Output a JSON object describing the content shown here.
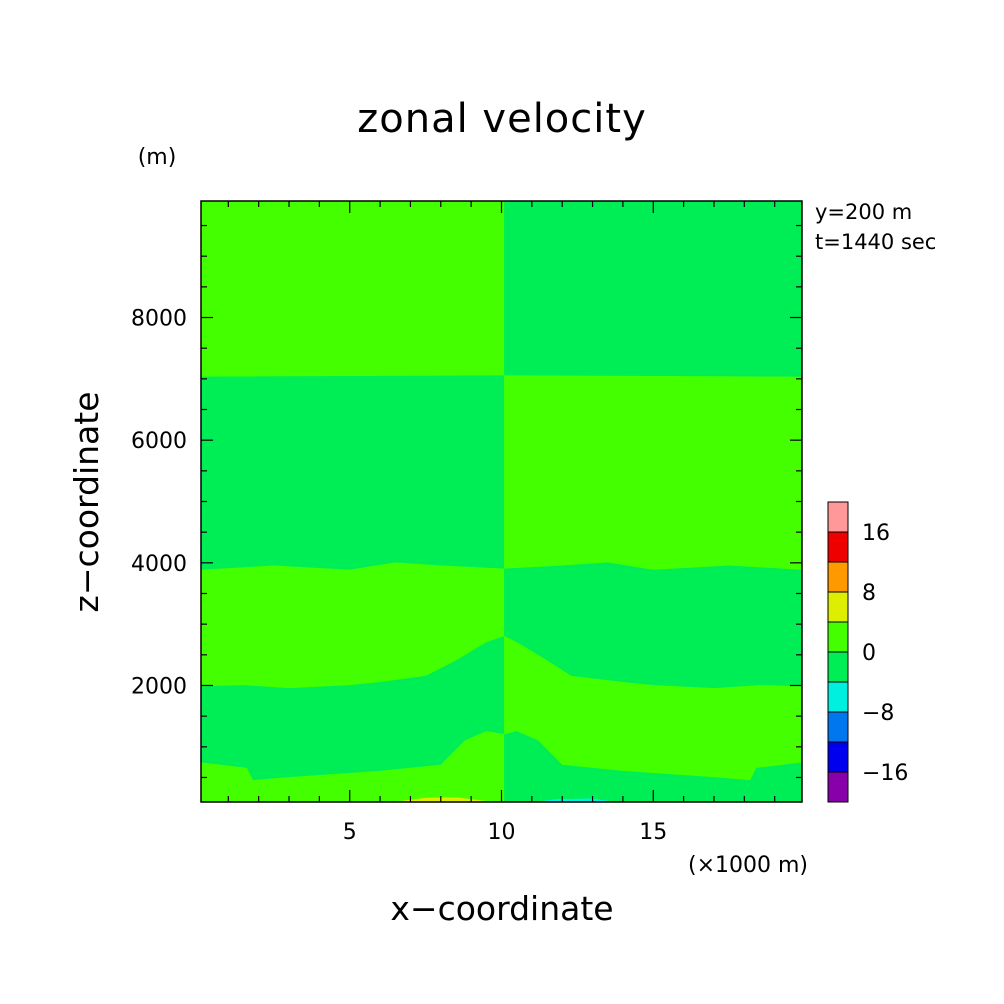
{
  "chart_data": {
    "type": "heatmap",
    "title": "zonal velocity",
    "xlabel": "x−coordinate",
    "ylabel": "z−coordinate",
    "x_unit": "(×1000 m)",
    "y_unit": "(m)",
    "annotations": [
      "y=200 m",
      "t=1440 sec"
    ],
    "xlim": [
      0.1,
      19.9
    ],
    "ylim": [
      100,
      9900
    ],
    "x_ticks": [
      5,
      10,
      15
    ],
    "y_ticks": [
      2000,
      4000,
      6000,
      8000
    ],
    "x_tick_labels": [
      "5",
      "10",
      "15"
    ],
    "y_tick_labels": [
      "2000",
      "4000",
      "6000",
      "8000"
    ],
    "colorbar": {
      "levels": [
        -20,
        -16,
        -12,
        -8,
        -4,
        0,
        4,
        8,
        12,
        16,
        20
      ],
      "colors": [
        "#8800aa",
        "#0000ee",
        "#0077ee",
        "#00f0e0",
        "#00ee55",
        "#44ff00",
        "#ddee00",
        "#ff9900",
        "#ee0000",
        "#ff9999"
      ],
      "tick_values": [
        16,
        8,
        0,
        -8,
        -16
      ],
      "tick_labels": [
        "16",
        "8",
        "0",
        "−8",
        "−16"
      ]
    },
    "regions": [
      {
        "value": 2,
        "polygon": [
          [
            0.1,
            9900
          ],
          [
            10.1,
            9900
          ],
          [
            10.1,
            7050
          ],
          [
            0.1,
            7030
          ]
        ]
      },
      {
        "value": -2,
        "polygon": [
          [
            10.1,
            9900
          ],
          [
            19.9,
            9900
          ],
          [
            19.9,
            7030
          ],
          [
            10.1,
            7050
          ]
        ]
      },
      {
        "value": -2,
        "polygon": [
          [
            0.1,
            7030
          ],
          [
            10.1,
            7050
          ],
          [
            10.1,
            3900
          ],
          [
            8,
            3950
          ],
          [
            6.5,
            4000
          ],
          [
            5,
            3880
          ],
          [
            2.5,
            3950
          ],
          [
            0.1,
            3880
          ]
        ]
      },
      {
        "value": 2,
        "polygon": [
          [
            10.1,
            7050
          ],
          [
            19.9,
            7030
          ],
          [
            19.9,
            3880
          ],
          [
            17.5,
            3950
          ],
          [
            15,
            3880
          ],
          [
            13.5,
            4000
          ],
          [
            12,
            3950
          ],
          [
            10.1,
            3900
          ]
        ]
      },
      {
        "value": 2,
        "polygon": [
          [
            0.1,
            3880
          ],
          [
            2.5,
            3950
          ],
          [
            5,
            3880
          ],
          [
            6.5,
            4000
          ],
          [
            8,
            3950
          ],
          [
            10.1,
            3900
          ],
          [
            10.1,
            2800
          ],
          [
            9.5,
            2700
          ],
          [
            8.5,
            2400
          ],
          [
            7.5,
            2150
          ],
          [
            6,
            2050
          ],
          [
            5,
            2000
          ],
          [
            3,
            1950
          ],
          [
            1.5,
            2000
          ],
          [
            0.1,
            1980
          ]
        ]
      },
      {
        "value": -2,
        "polygon": [
          [
            10.1,
            3900
          ],
          [
            12,
            3950
          ],
          [
            13.5,
            4000
          ],
          [
            15,
            3880
          ],
          [
            17.5,
            3950
          ],
          [
            19.9,
            3880
          ],
          [
            19.9,
            1980
          ],
          [
            18.5,
            2000
          ],
          [
            17,
            1950
          ],
          [
            15,
            2000
          ],
          [
            14,
            2050
          ],
          [
            12.3,
            2150
          ],
          [
            11.5,
            2400
          ],
          [
            10.5,
            2700
          ],
          [
            10.1,
            2800
          ]
        ]
      },
      {
        "value": -2,
        "polygon": [
          [
            0.1,
            1980
          ],
          [
            1.5,
            2000
          ],
          [
            3,
            1950
          ],
          [
            5,
            2000
          ],
          [
            6,
            2050
          ],
          [
            7.5,
            2150
          ],
          [
            8.5,
            2400
          ],
          [
            9.5,
            2700
          ],
          [
            10.1,
            2800
          ],
          [
            10.1,
            1200
          ],
          [
            9.5,
            1250
          ],
          [
            8.8,
            1100
          ],
          [
            8,
            700
          ],
          [
            6,
            600
          ],
          [
            3,
            500
          ],
          [
            1.8,
            450
          ],
          [
            1.6,
            650
          ],
          [
            0.1,
            740
          ]
        ]
      },
      {
        "value": 2,
        "polygon": [
          [
            10.1,
            2800
          ],
          [
            10.5,
            2700
          ],
          [
            11.5,
            2400
          ],
          [
            12.3,
            2150
          ],
          [
            14,
            2050
          ],
          [
            15,
            2000
          ],
          [
            17,
            1950
          ],
          [
            18.5,
            2000
          ],
          [
            19.9,
            1980
          ],
          [
            19.9,
            740
          ],
          [
            18.4,
            650
          ],
          [
            18.2,
            450
          ],
          [
            17,
            500
          ],
          [
            14,
            600
          ],
          [
            12,
            700
          ],
          [
            11.2,
            1100
          ],
          [
            10.5,
            1250
          ],
          [
            10.1,
            1200
          ]
        ]
      },
      {
        "value": 2,
        "polygon": [
          [
            0.1,
            740
          ],
          [
            1.6,
            650
          ],
          [
            1.8,
            450
          ],
          [
            3,
            500
          ],
          [
            6,
            600
          ],
          [
            8,
            700
          ],
          [
            8.8,
            1100
          ],
          [
            9.5,
            1250
          ],
          [
            10.1,
            1200
          ],
          [
            10.1,
            100
          ],
          [
            0.1,
            100
          ]
        ]
      },
      {
        "value": -2,
        "polygon": [
          [
            10.1,
            1200
          ],
          [
            10.5,
            1250
          ],
          [
            11.2,
            1100
          ],
          [
            12,
            700
          ],
          [
            14,
            600
          ],
          [
            17,
            500
          ],
          [
            18.2,
            450
          ],
          [
            18.4,
            650
          ],
          [
            19.9,
            740
          ],
          [
            19.9,
            100
          ],
          [
            10.1,
            100
          ]
        ]
      },
      {
        "value": 6,
        "polygon": [
          [
            6.5,
            100
          ],
          [
            7.5,
            160
          ],
          [
            8.5,
            170
          ],
          [
            9.3,
            120
          ],
          [
            9.8,
            100
          ]
        ]
      },
      {
        "value": -6,
        "polygon": [
          [
            11.2,
            100
          ],
          [
            11.8,
            140
          ],
          [
            13,
            150
          ],
          [
            13.7,
            100
          ]
        ]
      }
    ]
  }
}
